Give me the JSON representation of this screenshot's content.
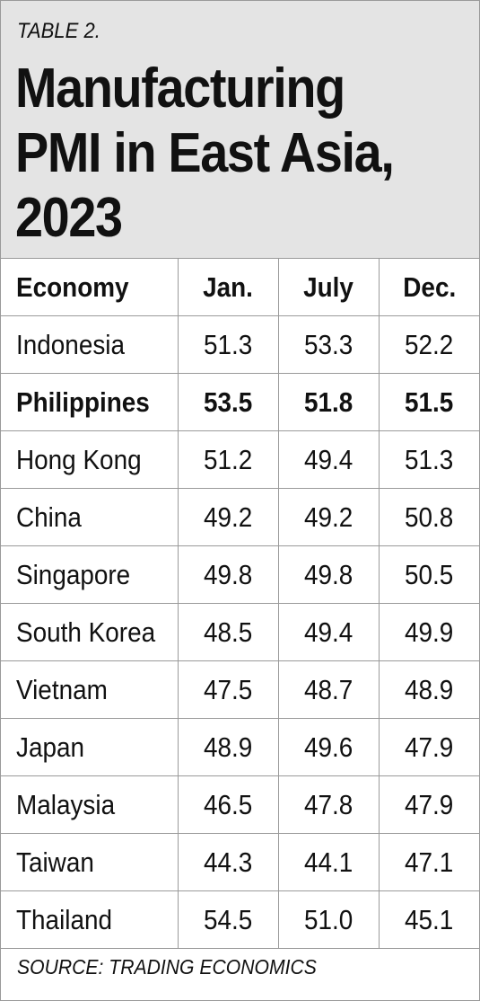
{
  "table_label": "TABLE 2.",
  "title": "Manufacturing\nPMI in East Asia,\n2023",
  "columns": [
    "Economy",
    "Jan.",
    "July",
    "Dec."
  ],
  "rows": [
    {
      "economy": "Indonesia",
      "jan": "51.3",
      "july": "53.3",
      "dec": "52.2",
      "highlight": false
    },
    {
      "economy": "Philippines",
      "jan": "53.5",
      "july": "51.8",
      "dec": "51.5",
      "highlight": true
    },
    {
      "economy": "Hong Kong",
      "jan": "51.2",
      "july": "49.4",
      "dec": "51.3",
      "highlight": false
    },
    {
      "economy": "China",
      "jan": "49.2",
      "july": "49.2",
      "dec": "50.8",
      "highlight": false
    },
    {
      "economy": "Singapore",
      "jan": "49.8",
      "july": "49.8",
      "dec": "50.5",
      "highlight": false
    },
    {
      "economy": "South Korea",
      "jan": "48.5",
      "july": "49.4",
      "dec": "49.9",
      "highlight": false
    },
    {
      "economy": "Vietnam",
      "jan": "47.5",
      "july": "48.7",
      "dec": "48.9",
      "highlight": false
    },
    {
      "economy": "Japan",
      "jan": "48.9",
      "july": "49.6",
      "dec": "47.9",
      "highlight": false
    },
    {
      "economy": "Malaysia",
      "jan": "46.5",
      "july": "47.8",
      "dec": "47.9",
      "highlight": false
    },
    {
      "economy": "Taiwan",
      "jan": "44.3",
      "july": "44.1",
      "dec": "47.1",
      "highlight": false
    },
    {
      "economy": "Thailand",
      "jan": "54.5",
      "july": "51.0",
      "dec": "45.1",
      "highlight": false
    }
  ],
  "source": "SOURCE: TRADING ECONOMICS",
  "colors": {
    "header_bg": "#e4e4e4",
    "rule": "#9a9a9a",
    "text": "#111111"
  }
}
